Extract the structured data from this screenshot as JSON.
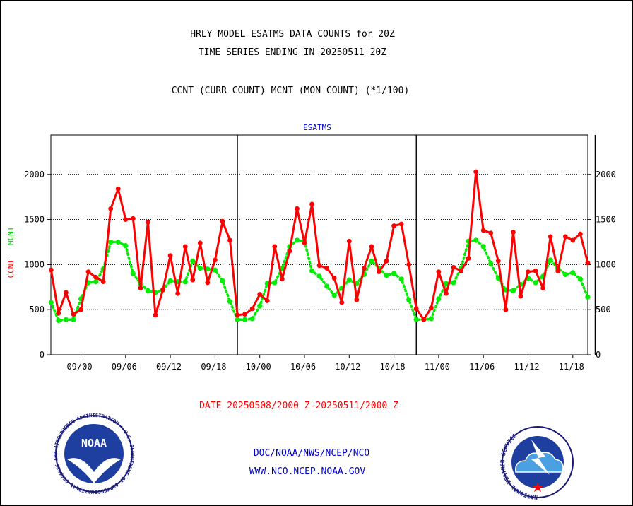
{
  "colors": {
    "background": "#ffffff",
    "frame": "#000000",
    "title_text": "#000000",
    "ccnt": "#ff0000",
    "mcnt": "#00ee00",
    "blue_text": "#0000cc",
    "date_text": "#ff0000"
  },
  "header": {
    "title_line1": "HRLY MODEL ESATMS DATA COUNTS for 20Z",
    "title_line2": "TIME SERIES ENDING IN 20250511 20Z",
    "subtitle": "CCNT (CURR COUNT) MCNT (MON COUNT) (*1/100)"
  },
  "footer": {
    "date_range": "DATE 20250508/2000 Z-20250511/2000 Z",
    "link1": "DOC/NOAA/NWS/NCEP/NCO",
    "link2": "WWW.NCO.NCEP.NOAA.GOV",
    "noaa_logo_text": "NOAA",
    "noaa_seal_text": "NATIONAL OCEANIC AND ATMOSPHERIC ADMINISTRATION • U.S. DEPARTMENT OF COMMERCE",
    "nws_seal_text": "NATIONAL WEATHER SERVICE"
  },
  "chart_data": {
    "type": "line",
    "title": "ESATMS",
    "ylabel_ccnt": "CCNT",
    "ylabel_mcnt": "MCNT",
    "ylim": [
      0,
      2400
    ],
    "y_ticks": [
      0,
      500,
      1000,
      1500,
      2000
    ],
    "grid": "horizontal dotted lines at y ticks",
    "x_tick_labels": [
      "09/00",
      "09/06",
      "09/12",
      "09/18",
      "10/00",
      "10/06",
      "10/12",
      "10/18",
      "11/00",
      "11/06",
      "11/12",
      "11/18"
    ],
    "day_separators_after_index": [
      21,
      45,
      69
    ],
    "x_hours": [
      -4,
      -3,
      -2,
      -1,
      0,
      1,
      2,
      3,
      4,
      5,
      6,
      7,
      8,
      9,
      10,
      11,
      12,
      13,
      14,
      15,
      16,
      17,
      18,
      19,
      20,
      21,
      22,
      23,
      24,
      25,
      26,
      27,
      28,
      29,
      30,
      31,
      32,
      33,
      34,
      35,
      36,
      37,
      38,
      39,
      40,
      41,
      42,
      43,
      44,
      45,
      46,
      47,
      48,
      49,
      50,
      51,
      52,
      53,
      54,
      55,
      56,
      57,
      58,
      59,
      60,
      61,
      62,
      63,
      64,
      65,
      66,
      67,
      68,
      69,
      70,
      71,
      72
    ],
    "series": [
      {
        "name": "CCNT",
        "color": "#ff0000",
        "values": [
          940,
          460,
          690,
          450,
          500,
          920,
          860,
          810,
          1620,
          1840,
          1500,
          1510,
          740,
          1470,
          440,
          720,
          1100,
          680,
          1200,
          830,
          1240,
          800,
          1050,
          1480,
          1270,
          440,
          450,
          510,
          670,
          600,
          1200,
          840,
          1150,
          1620,
          1240,
          1670,
          990,
          960,
          850,
          580,
          1260,
          610,
          960,
          1200,
          920,
          1040,
          1430,
          1450,
          1000,
          510,
          390,
          520,
          920,
          680,
          970,
          930,
          1070,
          2030,
          1380,
          1350,
          1040,
          500,
          1360,
          650,
          920,
          930,
          740,
          1310,
          930,
          1310,
          1270,
          1340,
          1020
        ]
      },
      {
        "name": "MCNT",
        "color": "#00ee00",
        "values": [
          580,
          380,
          390,
          390,
          620,
          800,
          810,
          950,
          1250,
          1250,
          1210,
          900,
          790,
          710,
          690,
          720,
          820,
          810,
          810,
          1040,
          960,
          950,
          940,
          820,
          590,
          390,
          390,
          400,
          540,
          790,
          800,
          960,
          1200,
          1270,
          1260,
          930,
          870,
          760,
          660,
          740,
          830,
          790,
          890,
          1040,
          960,
          880,
          900,
          840,
          610,
          390,
          390,
          400,
          620,
          790,
          800,
          960,
          1260,
          1270,
          1200,
          1010,
          850,
          720,
          710,
          780,
          850,
          800,
          870,
          1050,
          960,
          890,
          910,
          840,
          640
        ]
      }
    ]
  }
}
